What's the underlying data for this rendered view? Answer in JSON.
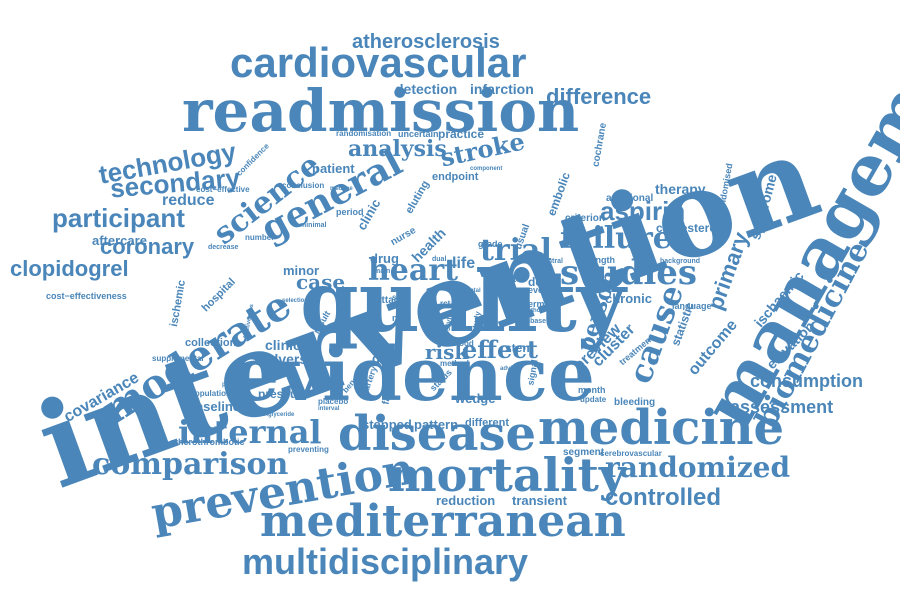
{
  "color": "#4a86b9",
  "words": {
    "intervention": "intervention",
    "management": "management",
    "quality": "quality",
    "evidence": "evidence",
    "readmission": "readmission",
    "cardiovascular": "cardiovascular",
    "medicine": "medicine",
    "disease": "disease",
    "mortality": "mortality",
    "mediterranean": "mediterranean",
    "multidisciplinary": "multidisciplinary",
    "prevention": "prevention",
    "moderate": "moderate",
    "comparison": "comparison",
    "internal": "internal",
    "randomized": "randomized",
    "controlled": "controlled",
    "studies": "studies",
    "failure": "failure",
    "general": "general",
    "science": "science",
    "biomedicine": "biomedicine",
    "cause": "cause",
    "technology": "technology",
    "secondary": "secondary",
    "participant": "participant",
    "clopidogrel": "clopidogrel",
    "coronary": "coronary",
    "aspirin": "aspirin",
    "atherosclerosis": "atherosclerosis",
    "difference": "difference",
    "heart": "heart",
    "trial": "trial",
    "effect": "effect",
    "analysis": "analysis",
    "stroke": "stroke",
    "consumption": "consumption",
    "assessment": "assessment",
    "person": "person",
    "risk": "risk",
    "case": "case",
    "reduce": "reduce",
    "aftercare": "aftercare",
    "covariance": "covariance",
    "detection": "detection",
    "infarction": "infarction",
    "primary": "primary",
    "syndrome": "syndrome",
    "outcome": "outcome",
    "ischaemic": "ischaemic",
    "elevation": "elevation",
    "therapy": "therapy",
    "cholesterol": "cholesterol",
    "chronic": "chronic",
    "preview": "preview",
    "cluster": "cluster",
    "adverse": "adverse",
    "clinical": "clinical",
    "data": "data",
    "care": "care",
    "stent": "stent",
    "baseline": "baseline",
    "collection": "collection",
    "pressure": "pressure",
    "wedge": "wedge",
    "stepped": "stepped",
    "pattern": "pattern",
    "different": "different",
    "reduction": "reduction",
    "transient": "transient",
    "segment": "segment",
    "cerebrovascular": "cerebrovascular",
    "atherothrombotic": "atherothrombotic",
    "preventing": "preventing",
    "population": "population",
    "supplemental": "supplemental",
    "hospital": "hospital",
    "ischemic": "ischemic",
    "cost_effectiveness": "cost−effectiveness",
    "patient": "patient",
    "number": "number",
    "minor": "minor",
    "drug": "drug",
    "life": "life",
    "diet": "diet",
    "death": "death",
    "event": "event",
    "length": "length",
    "health": "health",
    "nurse": "nurse",
    "clinic": "clinic",
    "practice": "practice",
    "endpoint": "endpoint",
    "eluting": "eluting",
    "uncertain": "uncertain",
    "randomisation": "randomisation",
    "conclusion": "conclusion",
    "cost_effective": "cost−effective",
    "confidence": "confidence",
    "period": "period",
    "minimal": "minimal",
    "embolic": "embolic",
    "criterion": "criterion",
    "additional": "additional",
    "randomised": "randomised",
    "cochrane": "cochrane",
    "component": "component",
    "grade": "grade",
    "usual": "usual",
    "attack": "attack",
    "fatal": "fatal",
    "term": "term",
    "embase": "embase",
    "background": "background",
    "language": "language",
    "statistic": "statistic",
    "treatment": "treatment",
    "month": "month",
    "update": "update",
    "bleeding": "bleeding",
    "signal": "signal",
    "factor": "factor",
    "artery": "artery",
    "status": "status",
    "method": "method",
    "blood": "blood",
    "note": "note",
    "stay": "stay",
    "rct": "rct",
    "main": "main",
    "central": "central",
    "total": "total",
    "major": "major",
    "result": "result",
    "placebo": "placebo",
    "interval": "interval",
    "benefit": "benefit",
    "triglyceride": "triglyceride",
    "peripheral": "peripheral",
    "effectiveness": "effectiveness",
    "decrease": "decrease",
    "dual": "dual",
    "style": "style",
    "study": "study",
    "author": "author",
    "advice": "advice",
    "selection": "selection",
    "medline": "medline"
  }
}
